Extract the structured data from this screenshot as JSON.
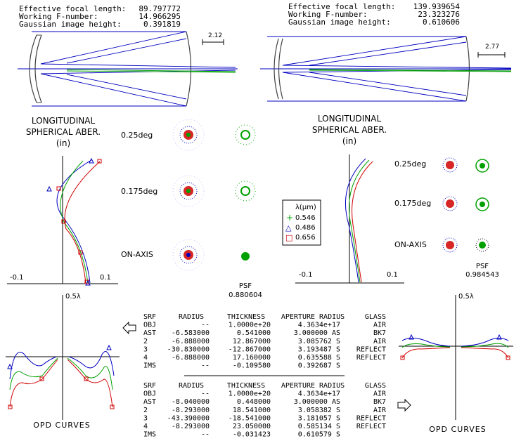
{
  "left": {
    "header": {
      "efl_label": "Effective focal length:",
      "efl_value": "89.797772",
      "fno_label": "Working F-number:",
      "fno_value": "14.966295",
      "gih_label": "Gaussian image height:",
      "gih_value": "0.391819"
    },
    "scale_label": "2.12",
    "lsa_title_1": "LONGITUDINAL",
    "lsa_title_2": "SPHERICAL ABER.",
    "lsa_units": "(in)",
    "lsa_axis_min": "-0.1",
    "lsa_axis_max": "0.1",
    "field_labels": [
      "0.25deg",
      "0.175deg",
      "ON-AXIS"
    ],
    "psf_label": "PSF",
    "psf_value": "0.880604",
    "opd_scale": "0.5λ",
    "opd_label": "OPD CURVES"
  },
  "right": {
    "header": {
      "efl_label": "Effective focal length:",
      "efl_value": "139.939654",
      "fno_label": "Working F-number:",
      "fno_value": "23.323276",
      "gih_label": "Gaussian image height:",
      "gih_value": "0.610606"
    },
    "scale_label": "2.77",
    "lsa_title_1": "LONGITUDINAL",
    "lsa_title_2": "SPHERICAL ABER.",
    "lsa_units": "(in)",
    "lsa_axis_min": "-0.1",
    "lsa_axis_max": "0.1",
    "field_labels": [
      "0.25deg",
      "0.175deg",
      "ON-AXIS"
    ],
    "psf_label": "PSF",
    "psf_value": "0.984543",
    "opd_scale": "0.5λ",
    "opd_label": "OPD CURVES"
  },
  "legend": {
    "title": "λ(μm)",
    "entries": [
      {
        "symbol": "+",
        "value": "0.546",
        "color": "#00a000"
      },
      {
        "symbol": "△",
        "value": "0.486",
        "color": "#0000c0"
      },
      {
        "symbol": "□",
        "value": "0.656",
        "color": "#d00000"
      }
    ]
  },
  "colors": {
    "blue": "#0000c0",
    "green": "#00a000",
    "red": "#d00000",
    "gray": "#707070"
  },
  "tables": [
    {
      "headers": [
        "SRF",
        "RADIUS",
        "THICKNESS",
        "APERTURE RADIUS",
        "GLASS"
      ],
      "rows": [
        [
          "OBJ",
          "--",
          "1.0000e+20",
          "4.3634e+17",
          "AIR"
        ],
        [
          "AST",
          "-6.583000",
          "0.541000",
          "3.000000 AS",
          "BK7"
        ],
        [
          "2",
          "-6.888000",
          "12.867000",
          "3.085762 S",
          "AIR"
        ],
        [
          "3",
          "-30.830000",
          "-12.867000",
          "3.193487 S",
          "REFLECT"
        ],
        [
          "4",
          "-6.888000",
          "17.160000",
          "0.635588 S",
          "REFLECT"
        ],
        [
          "IMS",
          "--",
          "-0.109580",
          "0.392687 S",
          ""
        ]
      ]
    },
    {
      "headers": [
        "SRF",
        "RADIUS",
        "THICKNESS",
        "APERTURE RADIUS",
        "GLASS"
      ],
      "rows": [
        [
          "OBJ",
          "--",
          "1.0000e+20",
          "4.3634e+17",
          "AIR"
        ],
        [
          "AST",
          "-8.040000",
          "0.448000",
          "3.000000 AS",
          "BK7"
        ],
        [
          "2",
          "-8.293000",
          "18.541000",
          "3.058382 S",
          "AIR"
        ],
        [
          "3",
          "-43.390000",
          "-18.541000",
          "3.181057 S",
          "REFLECT"
        ],
        [
          "4",
          "-8.293000",
          "23.050000",
          "0.585134 S",
          "REFLECT"
        ],
        [
          "IMS",
          "--",
          "-0.031423",
          "0.610579 S",
          ""
        ]
      ]
    }
  ]
}
